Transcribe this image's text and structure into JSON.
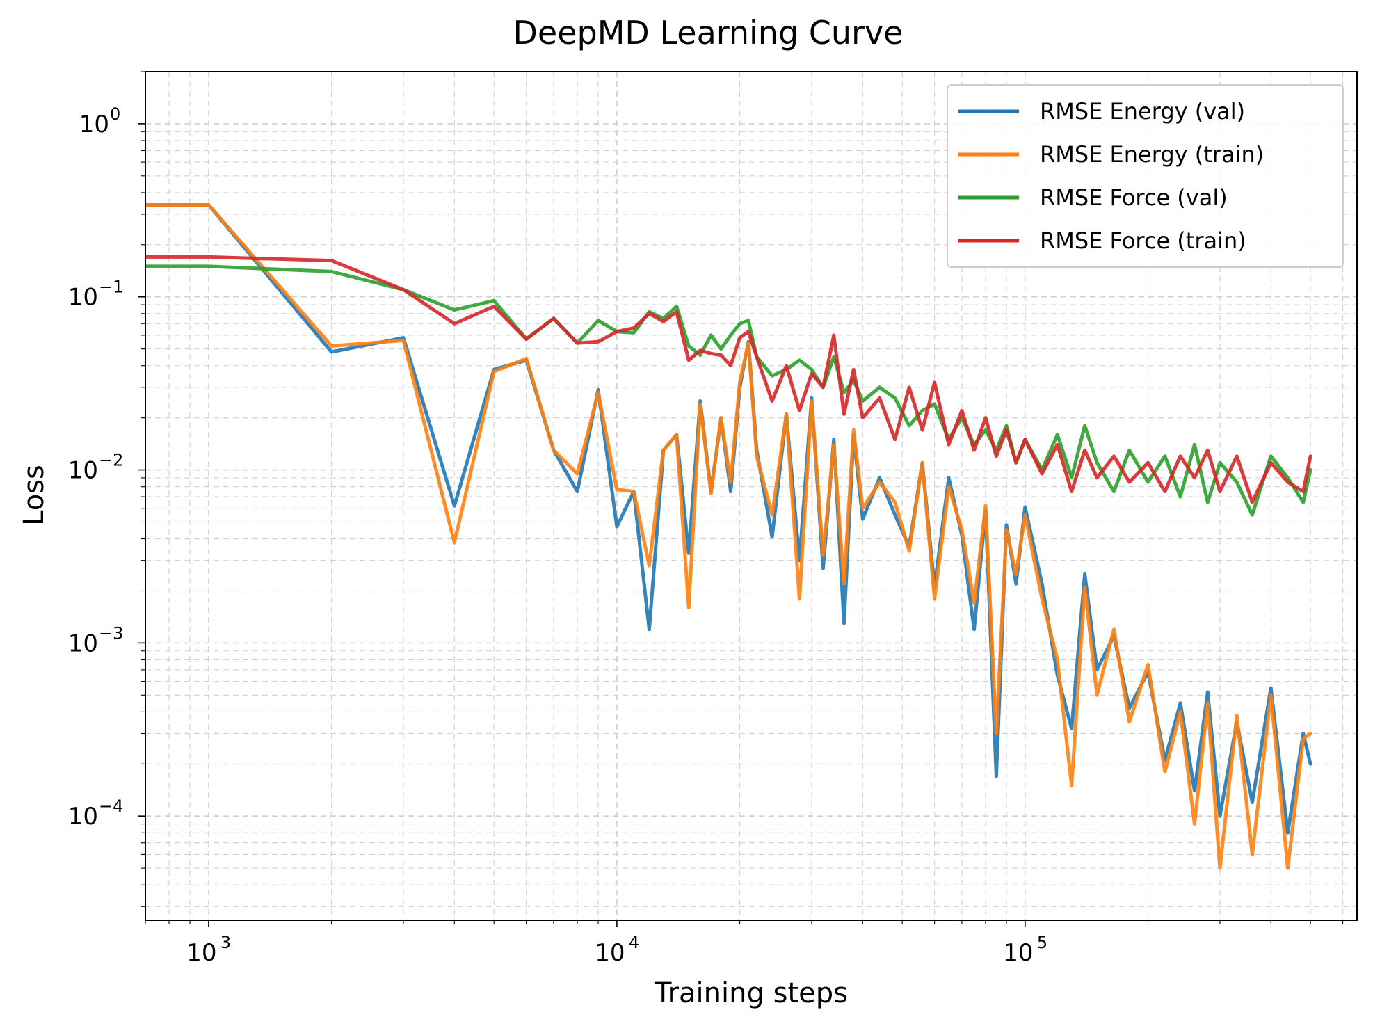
{
  "chart_data": {
    "type": "line",
    "title": "DeepMD Learning Curve",
    "xlabel": "Training steps",
    "ylabel": "Loss",
    "xscale": "log",
    "yscale": "log",
    "xlim": [
      700,
      650000
    ],
    "ylim": [
      2.5e-05,
      2.0
    ],
    "grid": true,
    "legend_position": "top-right",
    "x_ticks": [
      {
        "value": 1000,
        "label": "10",
        "exp": "3"
      },
      {
        "value": 10000,
        "label": "10",
        "exp": "4"
      },
      {
        "value": 100000,
        "label": "10",
        "exp": "5"
      }
    ],
    "y_ticks": [
      {
        "value": 1,
        "label": "10",
        "exp": "0"
      },
      {
        "value": 0.1,
        "label": "10",
        "exp": "−1"
      },
      {
        "value": 0.01,
        "label": "10",
        "exp": "−2"
      },
      {
        "value": 0.001,
        "label": "10",
        "exp": "−3"
      },
      {
        "value": 0.0001,
        "label": "10",
        "exp": "−4"
      }
    ],
    "series": [
      {
        "name": "RMSE Energy (val)",
        "color": "#1f77b4",
        "x": [
          700,
          1000,
          2000,
          3000,
          4000,
          5000,
          6000,
          7000,
          8000,
          9000,
          10000,
          11000,
          12000,
          13000,
          14000,
          15000,
          16000,
          17000,
          18000,
          19000,
          20000,
          21000,
          22000,
          24000,
          26000,
          28000,
          30000,
          32000,
          34000,
          36000,
          38000,
          40000,
          44000,
          48000,
          52000,
          56000,
          60000,
          65000,
          70000,
          75000,
          80000,
          85000,
          90000,
          95000,
          100000,
          110000,
          120000,
          130000,
          140000,
          150000,
          165000,
          180000,
          200000,
          220000,
          240000,
          260000,
          280000,
          300000,
          330000,
          360000,
          400000,
          440000,
          480000,
          500000
        ],
        "y": [
          0.34,
          0.34,
          0.048,
          0.058,
          0.0062,
          0.038,
          0.043,
          0.013,
          0.0075,
          0.029,
          0.0047,
          0.0075,
          0.0012,
          0.013,
          0.016,
          0.0033,
          0.025,
          0.0075,
          0.02,
          0.0075,
          0.03,
          0.055,
          0.013,
          0.0041,
          0.021,
          0.003,
          0.026,
          0.0027,
          0.015,
          0.0013,
          0.016,
          0.0052,
          0.009,
          0.0055,
          0.0036,
          0.011,
          0.0021,
          0.009,
          0.0042,
          0.0012,
          0.0058,
          0.00017,
          0.0048,
          0.0022,
          0.0061,
          0.0022,
          0.00065,
          0.00032,
          0.0025,
          0.0007,
          0.0011,
          0.00042,
          0.00068,
          0.00021,
          0.00045,
          0.00014,
          0.00052,
          0.0001,
          0.00035,
          0.00012,
          0.00055,
          8e-05,
          0.0003,
          0.0002
        ]
      },
      {
        "name": "RMSE Energy (train)",
        "color": "#ff7f0e",
        "x": [
          700,
          1000,
          2000,
          3000,
          4000,
          5000,
          6000,
          7000,
          8000,
          9000,
          10000,
          11000,
          12000,
          13000,
          14000,
          15000,
          16000,
          17000,
          18000,
          19000,
          20000,
          21000,
          22000,
          24000,
          26000,
          28000,
          30000,
          32000,
          34000,
          36000,
          38000,
          40000,
          44000,
          48000,
          52000,
          56000,
          60000,
          65000,
          70000,
          75000,
          80000,
          85000,
          90000,
          95000,
          100000,
          110000,
          120000,
          130000,
          140000,
          150000,
          165000,
          180000,
          200000,
          220000,
          240000,
          260000,
          280000,
          300000,
          330000,
          360000,
          400000,
          440000,
          480000,
          500000
        ],
        "y": [
          0.34,
          0.34,
          0.052,
          0.056,
          0.0038,
          0.037,
          0.044,
          0.013,
          0.0095,
          0.028,
          0.0077,
          0.0075,
          0.0028,
          0.013,
          0.016,
          0.0016,
          0.024,
          0.0073,
          0.02,
          0.0085,
          0.032,
          0.054,
          0.012,
          0.0055,
          0.021,
          0.0018,
          0.025,
          0.0032,
          0.014,
          0.0022,
          0.017,
          0.006,
          0.0085,
          0.0065,
          0.0034,
          0.011,
          0.0018,
          0.008,
          0.0045,
          0.0017,
          0.0062,
          0.0003,
          0.0045,
          0.0025,
          0.0055,
          0.0018,
          0.0008,
          0.00015,
          0.0021,
          0.0005,
          0.0012,
          0.00035,
          0.00075,
          0.00018,
          0.0004,
          9e-05,
          0.00045,
          5e-05,
          0.00038,
          6e-05,
          0.0005,
          5e-05,
          0.00028,
          0.0003
        ]
      },
      {
        "name": "RMSE Force (val)",
        "color": "#2ca02c",
        "x": [
          700,
          1000,
          2000,
          3000,
          4000,
          5000,
          6000,
          7000,
          8000,
          9000,
          10000,
          11000,
          12000,
          13000,
          14000,
          15000,
          16000,
          17000,
          18000,
          19000,
          20000,
          21000,
          22000,
          24000,
          26000,
          28000,
          30000,
          32000,
          34000,
          36000,
          38000,
          40000,
          44000,
          48000,
          52000,
          56000,
          60000,
          65000,
          70000,
          75000,
          80000,
          85000,
          90000,
          95000,
          100000,
          110000,
          120000,
          130000,
          140000,
          150000,
          165000,
          180000,
          200000,
          220000,
          240000,
          260000,
          280000,
          300000,
          330000,
          360000,
          400000,
          440000,
          480000,
          500000
        ],
        "y": [
          0.15,
          0.15,
          0.14,
          0.11,
          0.084,
          0.095,
          0.057,
          0.075,
          0.054,
          0.073,
          0.063,
          0.062,
          0.082,
          0.075,
          0.088,
          0.052,
          0.046,
          0.06,
          0.05,
          0.06,
          0.07,
          0.073,
          0.045,
          0.035,
          0.038,
          0.043,
          0.038,
          0.03,
          0.045,
          0.028,
          0.033,
          0.025,
          0.03,
          0.026,
          0.018,
          0.022,
          0.024,
          0.015,
          0.02,
          0.014,
          0.017,
          0.013,
          0.018,
          0.011,
          0.015,
          0.01,
          0.016,
          0.009,
          0.018,
          0.011,
          0.0075,
          0.013,
          0.0085,
          0.012,
          0.007,
          0.014,
          0.0065,
          0.011,
          0.0085,
          0.0055,
          0.012,
          0.009,
          0.0065,
          0.01
        ]
      },
      {
        "name": "RMSE Force (train)",
        "color": "#d62728",
        "x": [
          700,
          1000,
          2000,
          3000,
          4000,
          5000,
          6000,
          7000,
          8000,
          9000,
          10000,
          11000,
          12000,
          13000,
          14000,
          15000,
          16000,
          17000,
          18000,
          19000,
          20000,
          21000,
          22000,
          24000,
          26000,
          28000,
          30000,
          32000,
          34000,
          36000,
          38000,
          40000,
          44000,
          48000,
          52000,
          56000,
          60000,
          65000,
          70000,
          75000,
          80000,
          85000,
          90000,
          95000,
          100000,
          110000,
          120000,
          130000,
          140000,
          150000,
          165000,
          180000,
          200000,
          220000,
          240000,
          260000,
          280000,
          300000,
          330000,
          360000,
          400000,
          440000,
          480000,
          500000
        ],
        "y": [
          0.17,
          0.17,
          0.162,
          0.11,
          0.07,
          0.088,
          0.057,
          0.075,
          0.054,
          0.055,
          0.063,
          0.066,
          0.08,
          0.072,
          0.082,
          0.043,
          0.049,
          0.047,
          0.046,
          0.04,
          0.058,
          0.063,
          0.045,
          0.025,
          0.04,
          0.022,
          0.036,
          0.03,
          0.06,
          0.021,
          0.038,
          0.02,
          0.026,
          0.015,
          0.03,
          0.017,
          0.032,
          0.014,
          0.022,
          0.013,
          0.02,
          0.012,
          0.017,
          0.011,
          0.015,
          0.0095,
          0.014,
          0.0075,
          0.013,
          0.009,
          0.012,
          0.0085,
          0.011,
          0.0075,
          0.012,
          0.009,
          0.013,
          0.0075,
          0.012,
          0.0065,
          0.011,
          0.0085,
          0.0075,
          0.012
        ]
      }
    ]
  }
}
